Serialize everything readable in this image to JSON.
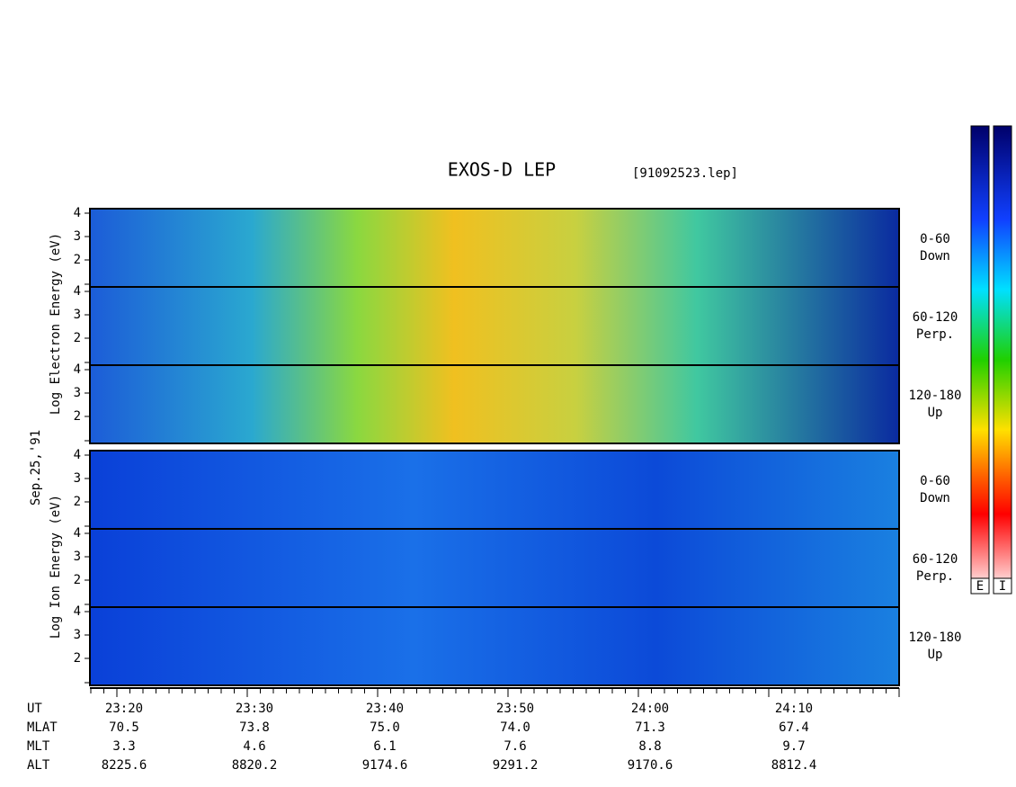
{
  "header": {
    "title": "EXOS-D LEP",
    "file": "[91092523.lep]"
  },
  "electron": {
    "axis_label": "Log Electron Energy (eV)",
    "panels": [
      {
        "ticks": [
          "4",
          "3",
          "2"
        ],
        "label": [
          "0-60",
          "Down"
        ]
      },
      {
        "ticks": [
          "4",
          "3",
          "2"
        ],
        "label": [
          "60-120",
          "Perp."
        ]
      },
      {
        "ticks": [
          "4",
          "3",
          "2"
        ],
        "label": [
          "120-180",
          "Up"
        ]
      }
    ]
  },
  "date": "Sep.25,'91",
  "ion": {
    "axis_label": "Log Ion Energy (eV)",
    "panels": [
      {
        "ticks": [
          "4",
          "3",
          "2"
        ],
        "label": [
          "0-60",
          "Down"
        ]
      },
      {
        "ticks": [
          "4",
          "3",
          "2"
        ],
        "label": [
          "60-120",
          "Perp."
        ]
      },
      {
        "ticks": [
          "4",
          "3",
          "2"
        ],
        "label": [
          "120-180",
          "Up"
        ]
      }
    ]
  },
  "table": {
    "rows": [
      [
        "UT",
        "23:20",
        "23:30",
        "23:40",
        "23:50",
        "24:00",
        "24:10"
      ],
      [
        "MLAT",
        "70.5",
        "73.8",
        "75.0",
        "74.0",
        "71.3",
        "67.4"
      ],
      [
        "MLT",
        "3.3",
        "4.6",
        "6.1",
        "7.6",
        "8.8",
        "9.7"
      ],
      [
        "ALT",
        "8225.6",
        "8820.2",
        "9174.6",
        "9291.2",
        "9170.6",
        "8812.4"
      ]
    ]
  },
  "colorbars": [
    "E",
    "I"
  ]
}
